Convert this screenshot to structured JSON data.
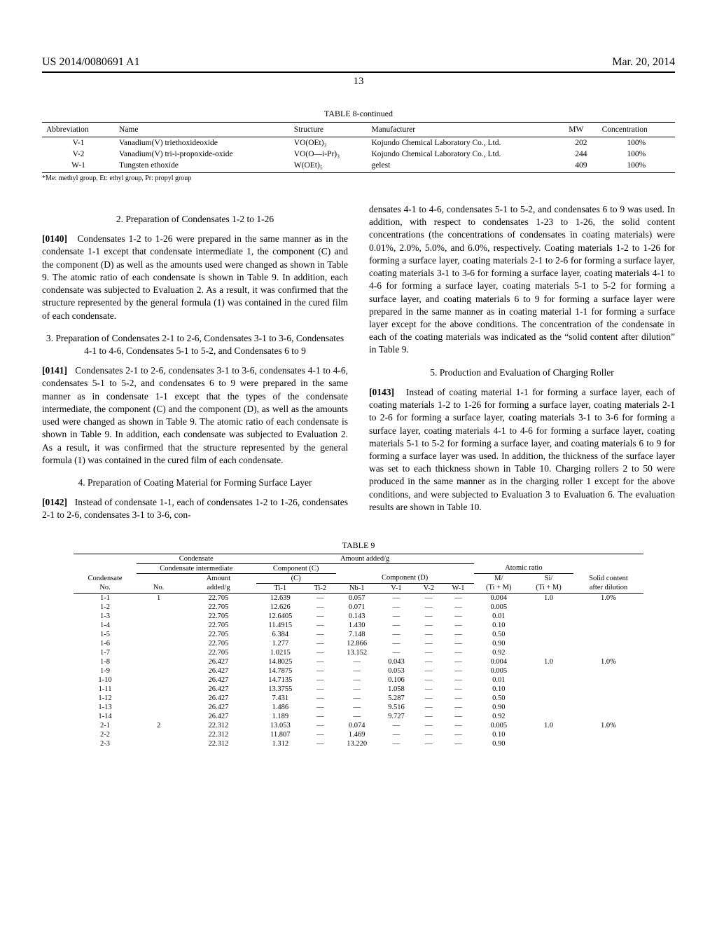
{
  "header": {
    "left": "US 2014/0080691 A1",
    "right": "Mar. 20, 2014"
  },
  "page_number": "13",
  "table8": {
    "caption": "TABLE 8-continued",
    "headers": [
      "Abbreviation",
      "Name",
      "Structure",
      "Manufacturer",
      "MW",
      "Concentration"
    ],
    "rows": [
      {
        "abbr": "V-1",
        "name": "Vanadium(V) triethoxideoxide",
        "struct": "VO(OEt)₃",
        "mfr": "Kojundo Chemical Laboratory Co., Ltd.",
        "mw": "202",
        "conc": "100%"
      },
      {
        "abbr": "V-2",
        "name": "Vanadium(V) tri-i-propoxide-oxide",
        "struct": "VO(O—i-Pr)₃",
        "mfr": "Kojundo Chemical Laboratory Co., Ltd.",
        "mw": "244",
        "conc": "100%"
      },
      {
        "abbr": "W-1",
        "name": "Tungsten ethoxide",
        "struct": "W(OEt)₅",
        "mfr": "gelest",
        "mw": "409",
        "conc": "100%"
      }
    ],
    "footnote": "*Me: methyl group, Et: ethyl group, Pr: propyl group"
  },
  "body": {
    "sec2_title": "2. Preparation of Condensates 1-2 to 1-26",
    "p0140_num": "[0140]",
    "p0140": "Condensates 1-2 to 1-26 were prepared in the same manner as in the condensate 1-1 except that condensate intermediate 1, the component (C) and the component (D) as well as the amounts used were changed as shown in Table 9. The atomic ratio of each condensate is shown in Table 9. In addition, each condensate was subjected to Evaluation 2. As a result, it was confirmed that the structure represented by the general formula (1) was contained in the cured film of each condensate.",
    "sec3_title": "3. Preparation of Condensates 2-1 to 2-6, Condensates 3-1 to 3-6, Condensates 4-1 to 4-6, Condensates 5-1 to 5-2, and Condensates 6 to 9",
    "p0141_num": "[0141]",
    "p0141": "Condensates 2-1 to 2-6, condensates 3-1 to 3-6, condensates 4-1 to 4-6, condensates 5-1 to 5-2, and condensates 6 to 9 were prepared in the same manner as in condensate 1-1 except that the types of the condensate intermediate, the component (C) and the component (D), as well as the amounts used were changed as shown in Table 9. The atomic ratio of each condensate is shown in Table 9. In addition, each condensate was subjected to Evaluation 2. As a result, it was confirmed that the structure represented by the general formula (1) was contained in the cured film of each condensate.",
    "sec4_title": "4. Preparation of Coating Material for Forming Surface Layer",
    "p0142_num": "[0142]",
    "p0142_left": "Instead of condensate 1-1, each of condensates 1-2 to 1-26, condensates 2-1 to 2-6, condensates 3-1 to 3-6, con-",
    "p0142_right": "densates 4-1 to 4-6, condensates 5-1 to 5-2, and condensates 6 to 9 was used. In addition, with respect to condensates 1-23 to 1-26, the solid content concentrations (the concentrations of condensates in coating materials) were 0.01%, 2.0%, 5.0%, and 6.0%, respectively. Coating materials 1-2 to 1-26 for forming a surface layer, coating materials 2-1 to 2-6 for forming a surface layer, coating materials 3-1 to 3-6 for forming a surface layer, coating materials 4-1 to 4-6 for forming a surface layer, coating materials 5-1 to 5-2 for forming a surface layer, and coating materials 6 to 9 for forming a surface layer were prepared in the same manner as in coating material 1-1 for forming a surface layer except for the above conditions. The concentration of the condensate in each of the coating materials was indicated as the “solid content after dilution” in Table 9.",
    "sec5_title": "5. Production and Evaluation of Charging Roller",
    "p0143_num": "[0143]",
    "p0143": "Instead of coating material 1-1 for forming a surface layer, each of coating materials 1-2 to 1-26 for forming a surface layer, coating materials 2-1 to 2-6 for forming a surface layer, coating materials 3-1 to 3-6 for forming a surface layer, coating materials 4-1 to 4-6 for forming a surface layer, coating materials 5-1 to 5-2 for forming a surface layer, and coating materials 6 to 9 for forming a surface layer was used. In addition, the thickness of the surface layer was set to each thickness shown in Table 10. Charging rollers 2 to 50 were produced in the same manner as in the charging roller 1 except for the above conditions, and were subjected to Evaluation 3 to Evaluation 6. The evaluation results are shown in Table 10."
  },
  "table9": {
    "caption": "TABLE 9",
    "group_amount": "Amount added/g",
    "group_cond_int": "Condensate intermediate",
    "group_component": "Component (C)",
    "group_compD": "Component (D)",
    "group_atomic": "Atomic ratio",
    "h_condensate": "Condensate No.",
    "h_no": "No.",
    "h_amount": "Amount added/g",
    "h_ti1": "Ti-1",
    "h_ti2": "Ti-2",
    "h_nb1": "Nb-1",
    "h_v1": "V-1",
    "h_v2": "V-2",
    "h_w1": "W-1",
    "h_m": "M/ (Ti + M)",
    "h_si": "Si/ (Ti + M)",
    "h_solid": "Solid content after dilution",
    "rows": [
      {
        "cn": "1-1",
        "no": "1",
        "amt": "22.705",
        "ti1": "12.639",
        "ti2": "—",
        "nb1": "0.057",
        "v1": "—",
        "v2": "—",
        "w1": "—",
        "m": "0.004",
        "si": "1.0",
        "sc": "1.0%"
      },
      {
        "cn": "1-2",
        "no": "",
        "amt": "22.705",
        "ti1": "12.626",
        "ti2": "—",
        "nb1": "0.071",
        "v1": "—",
        "v2": "—",
        "w1": "—",
        "m": "0.005",
        "si": "",
        "sc": ""
      },
      {
        "cn": "1-3",
        "no": "",
        "amt": "22.705",
        "ti1": "12.6405",
        "ti2": "—",
        "nb1": "0.143",
        "v1": "—",
        "v2": "—",
        "w1": "—",
        "m": "0.01",
        "si": "",
        "sc": ""
      },
      {
        "cn": "1-4",
        "no": "",
        "amt": "22.705",
        "ti1": "11.4915",
        "ti2": "—",
        "nb1": "1.430",
        "v1": "—",
        "v2": "—",
        "w1": "—",
        "m": "0.10",
        "si": "",
        "sc": ""
      },
      {
        "cn": "1-5",
        "no": "",
        "amt": "22.705",
        "ti1": "6.384",
        "ti2": "—",
        "nb1": "7.148",
        "v1": "—",
        "v2": "—",
        "w1": "—",
        "m": "0.50",
        "si": "",
        "sc": ""
      },
      {
        "cn": "1-6",
        "no": "",
        "amt": "22.705",
        "ti1": "1.277",
        "ti2": "—",
        "nb1": "12.866",
        "v1": "—",
        "v2": "—",
        "w1": "—",
        "m": "0.90",
        "si": "",
        "sc": ""
      },
      {
        "cn": "1-7",
        "no": "",
        "amt": "22.705",
        "ti1": "1.0215",
        "ti2": "—",
        "nb1": "13.152",
        "v1": "—",
        "v2": "—",
        "w1": "—",
        "m": "0.92",
        "si": "",
        "sc": ""
      },
      {
        "cn": "1-8",
        "no": "",
        "amt": "26.427",
        "ti1": "14.8025",
        "ti2": "—",
        "nb1": "—",
        "v1": "0.043",
        "v2": "—",
        "w1": "—",
        "m": "0.004",
        "si": "1.0",
        "sc": "1.0%"
      },
      {
        "cn": "1-9",
        "no": "",
        "amt": "26.427",
        "ti1": "14.7875",
        "ti2": "—",
        "nb1": "—",
        "v1": "0.053",
        "v2": "—",
        "w1": "—",
        "m": "0.005",
        "si": "",
        "sc": ""
      },
      {
        "cn": "1-10",
        "no": "",
        "amt": "26.427",
        "ti1": "14.7135",
        "ti2": "—",
        "nb1": "—",
        "v1": "0.106",
        "v2": "—",
        "w1": "—",
        "m": "0.01",
        "si": "",
        "sc": ""
      },
      {
        "cn": "1-11",
        "no": "",
        "amt": "26.427",
        "ti1": "13.3755",
        "ti2": "—",
        "nb1": "—",
        "v1": "1.058",
        "v2": "—",
        "w1": "—",
        "m": "0.10",
        "si": "",
        "sc": ""
      },
      {
        "cn": "1-12",
        "no": "",
        "amt": "26.427",
        "ti1": "7.431",
        "ti2": "—",
        "nb1": "—",
        "v1": "5.287",
        "v2": "—",
        "w1": "—",
        "m": "0.50",
        "si": "",
        "sc": ""
      },
      {
        "cn": "1-13",
        "no": "",
        "amt": "26.427",
        "ti1": "1.486",
        "ti2": "—",
        "nb1": "—",
        "v1": "9.516",
        "v2": "—",
        "w1": "—",
        "m": "0.90",
        "si": "",
        "sc": ""
      },
      {
        "cn": "1-14",
        "no": "",
        "amt": "26.427",
        "ti1": "1.189",
        "ti2": "—",
        "nb1": "—",
        "v1": "9.727",
        "v2": "—",
        "w1": "—",
        "m": "0.92",
        "si": "",
        "sc": ""
      },
      {
        "cn": "2-1",
        "no": "2",
        "amt": "22.312",
        "ti1": "13.053",
        "ti2": "—",
        "nb1": "0.074",
        "v1": "—",
        "v2": "—",
        "w1": "—",
        "m": "0.005",
        "si": "1.0",
        "sc": "1.0%"
      },
      {
        "cn": "2-2",
        "no": "",
        "amt": "22.312",
        "ti1": "11.807",
        "ti2": "—",
        "nb1": "1.469",
        "v1": "—",
        "v2": "—",
        "w1": "—",
        "m": "0.10",
        "si": "",
        "sc": ""
      },
      {
        "cn": "2-3",
        "no": "",
        "amt": "22.312",
        "ti1": "1.312",
        "ti2": "—",
        "nb1": "13.220",
        "v1": "—",
        "v2": "—",
        "w1": "—",
        "m": "0.90",
        "si": "",
        "sc": ""
      }
    ]
  }
}
